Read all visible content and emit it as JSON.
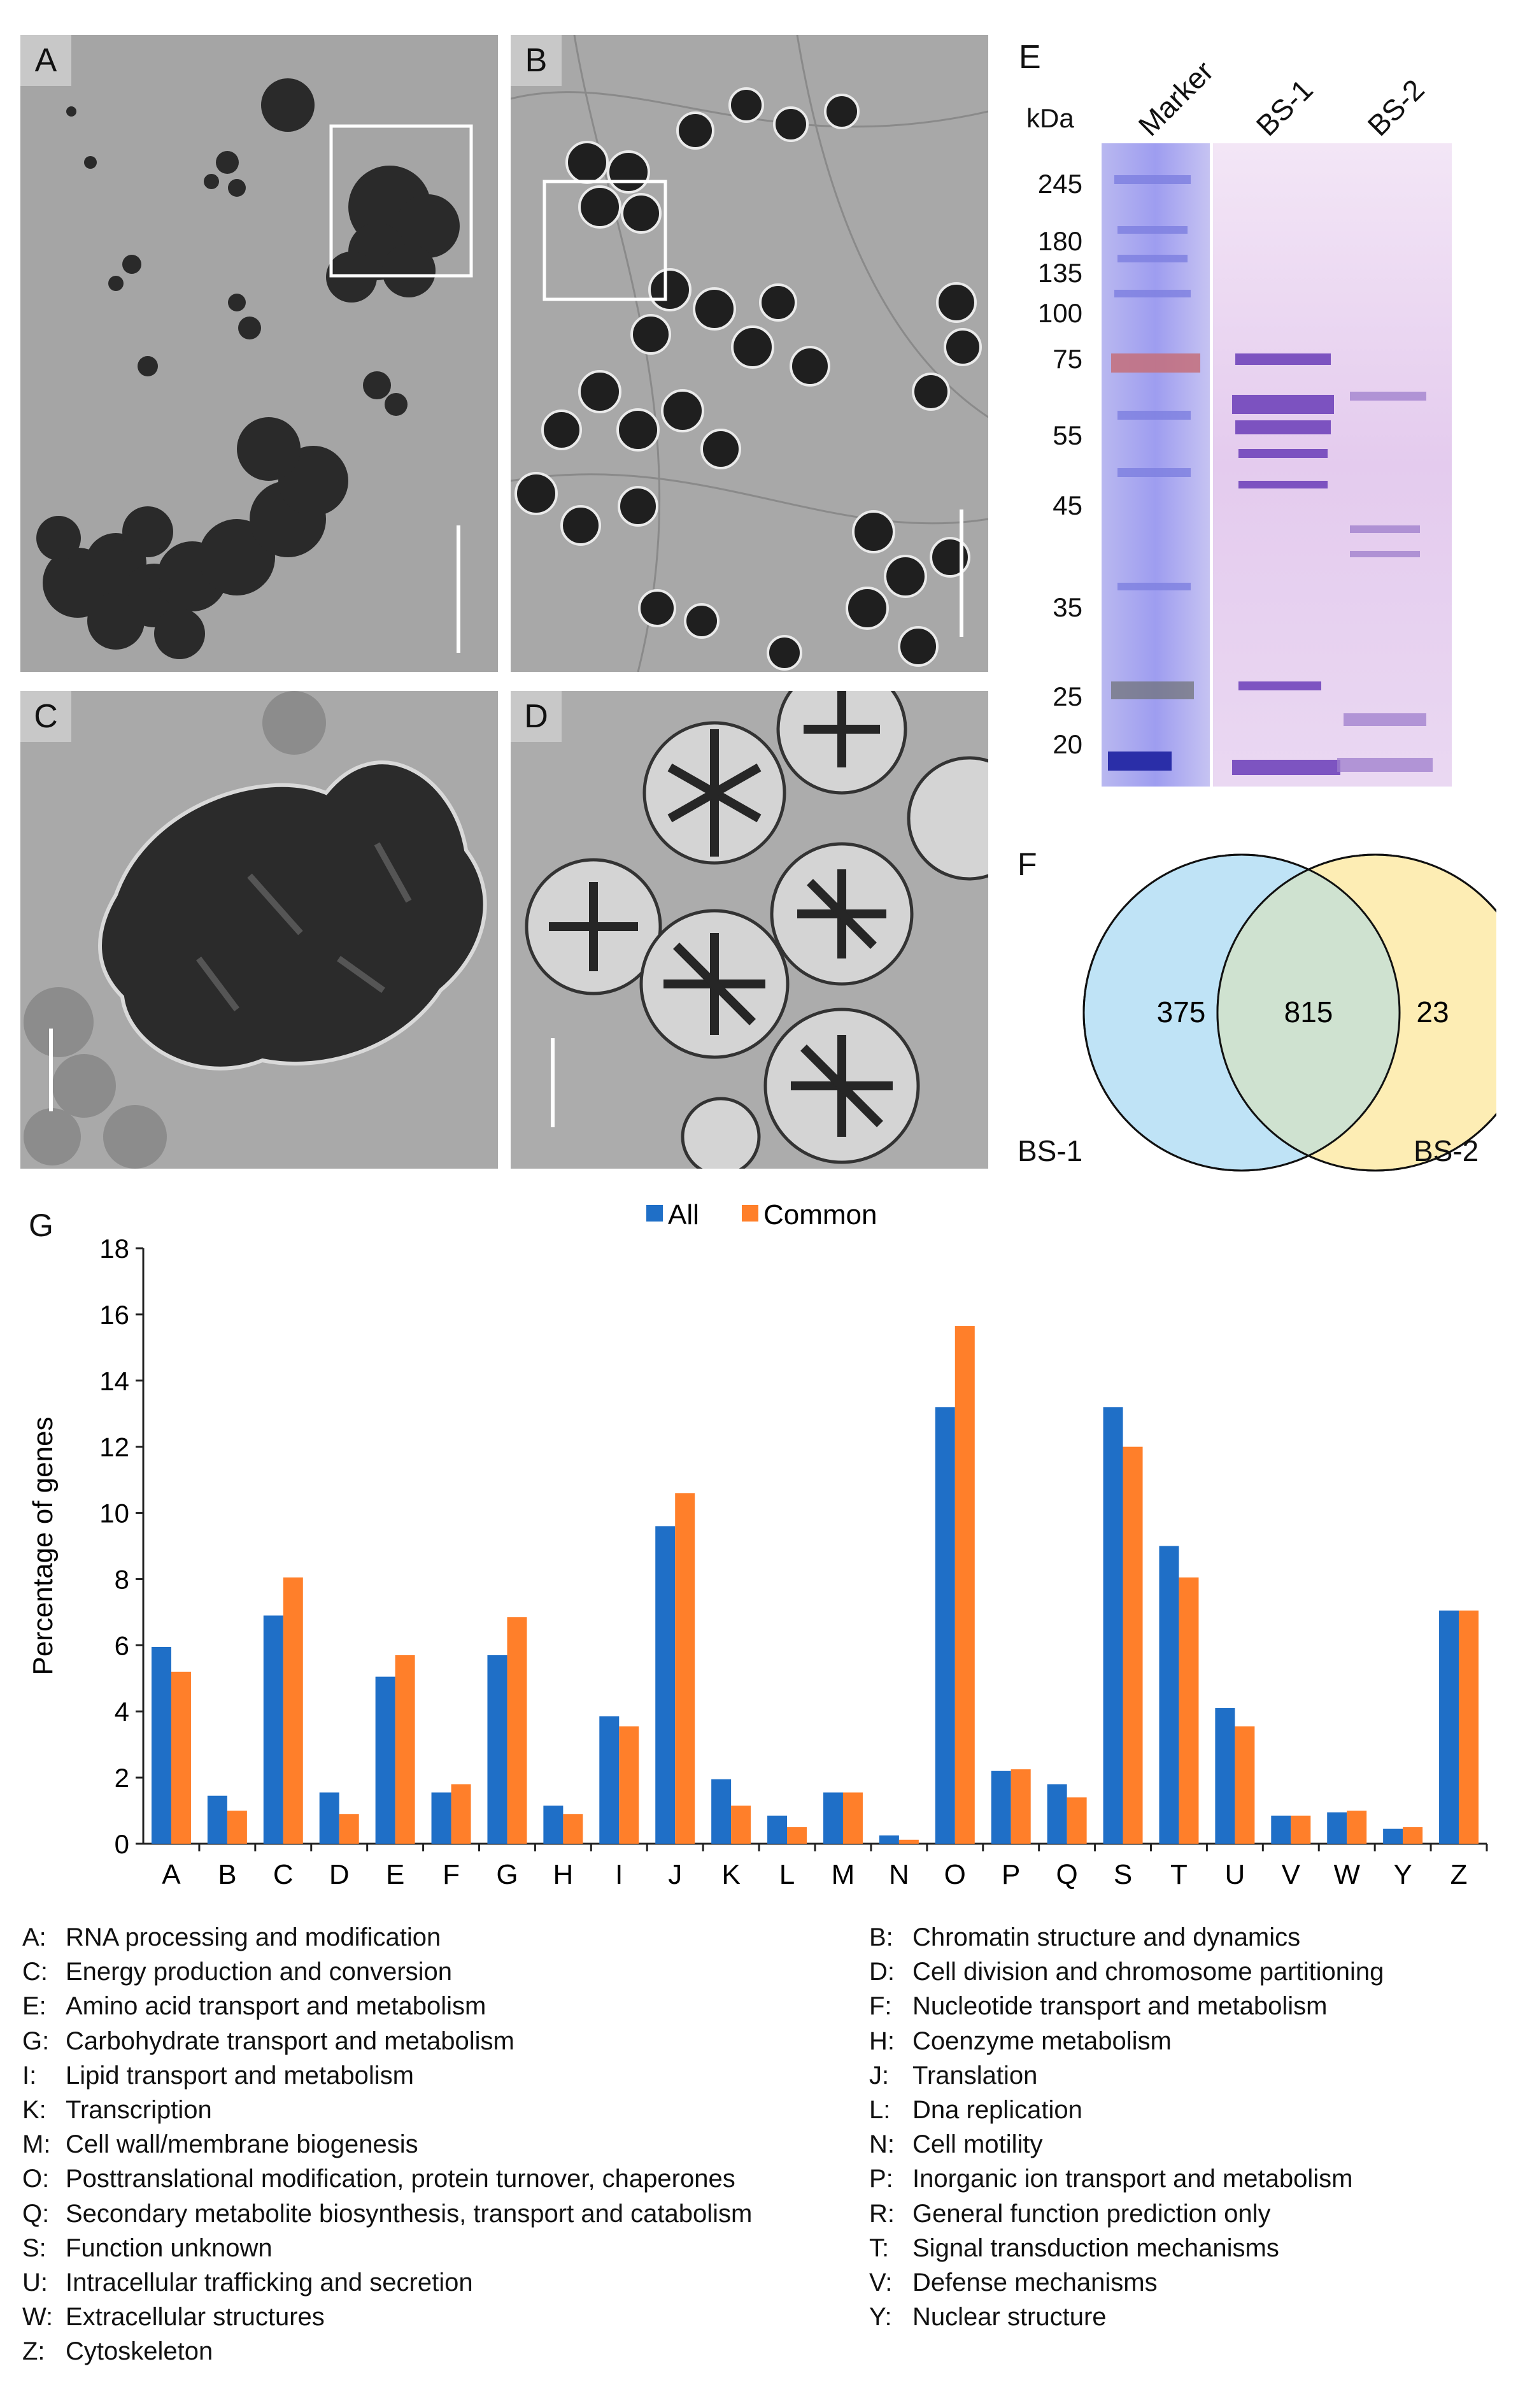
{
  "panels": {
    "A": {
      "label": "A"
    },
    "B": {
      "label": "B"
    },
    "C": {
      "label": "C"
    },
    "D": {
      "label": "D"
    }
  },
  "gel": {
    "label": "E",
    "unit": "kDa",
    "lanes": [
      "Marker",
      "BS-1",
      "BS-2"
    ],
    "markers": [
      "245",
      "180",
      "135",
      "100",
      "75",
      "55",
      "45",
      "35",
      "25",
      "20"
    ]
  },
  "venn": {
    "label": "F",
    "left_name": "BS-1",
    "right_name": "BS-2",
    "left_only": "375",
    "both": "815",
    "right_only": "23",
    "left_color": "#bfe3f6",
    "right_color": "#fdedb4",
    "overlap_color": "#cfe2d0"
  },
  "chart_data": {
    "type": "bar",
    "panel_label": "G",
    "title": "",
    "xlabel": "",
    "ylabel": "Percentage of genes",
    "ylim": [
      0,
      18
    ],
    "yticks": [
      "0",
      "2",
      "4",
      "6",
      "8",
      "10",
      "12",
      "14",
      "16",
      "18"
    ],
    "categories": [
      "A",
      "B",
      "C",
      "D",
      "E",
      "F",
      "G",
      "H",
      "I",
      "J",
      "K",
      "L",
      "M",
      "N",
      "O",
      "P",
      "Q",
      "S",
      "T",
      "U",
      "V",
      "W",
      "Y",
      "Z"
    ],
    "series": [
      {
        "name": "All",
        "color": "#1f6fc7",
        "values": [
          5.95,
          1.45,
          6.9,
          1.55,
          5.05,
          1.55,
          5.7,
          1.15,
          3.85,
          9.6,
          1.95,
          0.85,
          1.55,
          0.25,
          13.2,
          2.2,
          1.8,
          13.2,
          9.0,
          4.1,
          0.85,
          0.95,
          0.45,
          7.05
        ]
      },
      {
        "name": "Common",
        "color": "#ff7f2a",
        "values": [
          5.2,
          1.0,
          8.05,
          0.9,
          5.7,
          1.8,
          6.85,
          0.9,
          3.55,
          10.6,
          1.15,
          0.5,
          1.55,
          0.12,
          15.65,
          2.25,
          1.4,
          12.0,
          8.05,
          3.55,
          0.85,
          1.0,
          0.5,
          7.05
        ]
      }
    ]
  },
  "legend_entries": [
    {
      "k": "A:",
      "v": "RNA processing and modification"
    },
    {
      "k": "B:",
      "v": "Chromatin structure and dynamics"
    },
    {
      "k": "C:",
      "v": "Energy production and conversion"
    },
    {
      "k": "D:",
      "v": "Cell division and chromosome partitioning"
    },
    {
      "k": "E:",
      "v": "Amino acid transport and metabolism"
    },
    {
      "k": "F:",
      "v": "Nucleotide transport and metabolism"
    },
    {
      "k": "G:",
      "v": "Carbohydrate transport and metabolism"
    },
    {
      "k": "H:",
      "v": "Coenzyme metabolism"
    },
    {
      "k": "I:",
      "v": "Lipid transport and metabolism"
    },
    {
      "k": "J:",
      "v": "Translation"
    },
    {
      "k": "K:",
      "v": "Transcription"
    },
    {
      "k": "L:",
      "v": "Dna replication"
    },
    {
      "k": "M:",
      "v": "Cell wall/membrane biogenesis"
    },
    {
      "k": "N:",
      "v": "Cell motility"
    },
    {
      "k": "O:",
      "v": "Posttranslational modification, protein turnover, chaperones"
    },
    {
      "k": "P:",
      "v": "Inorganic ion transport and metabolism"
    },
    {
      "k": "Q:",
      "v": "Secondary metabolite biosynthesis, transport and catabolism"
    },
    {
      "k": "R:",
      "v": "General function prediction only"
    },
    {
      "k": "S:",
      "v": "Function unknown"
    },
    {
      "k": "T:",
      "v": "Signal transduction mechanisms"
    },
    {
      "k": "U:",
      "v": "Intracellular trafficking and secretion"
    },
    {
      "k": "V:",
      "v": "Defense mechanisms"
    },
    {
      "k": "W:",
      "v": "Extracellular structures"
    },
    {
      "k": "Y:",
      "v": "Nuclear structure"
    },
    {
      "k": "Z:",
      "v": "Cytoskeleton"
    }
  ]
}
